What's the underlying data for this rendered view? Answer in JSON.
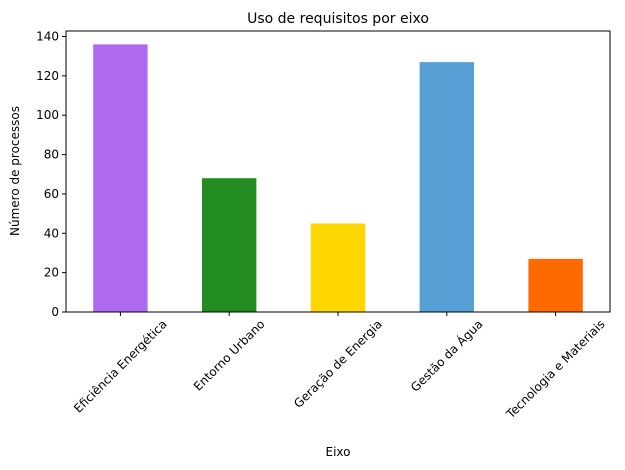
{
  "chart_data": {
    "type": "bar",
    "title": "Uso de requisitos por eixo",
    "x_label": "Eixo",
    "y_label": "Número de processos",
    "categories": [
      "Eficiência Energética",
      "Entorno Urbano",
      "Geração de Energia",
      "Gestão da Água",
      "Tecnologia e Materiais"
    ],
    "values": [
      136,
      68,
      45,
      127,
      27
    ],
    "colors": [
      "#af69ee",
      "#228b22",
      "#ffd700",
      "#589fd5",
      "#ff6a00"
    ],
    "ylim": [
      0,
      142.8
    ],
    "yticks": [
      0,
      20,
      40,
      60,
      80,
      100,
      120,
      140
    ],
    "grid": false
  }
}
